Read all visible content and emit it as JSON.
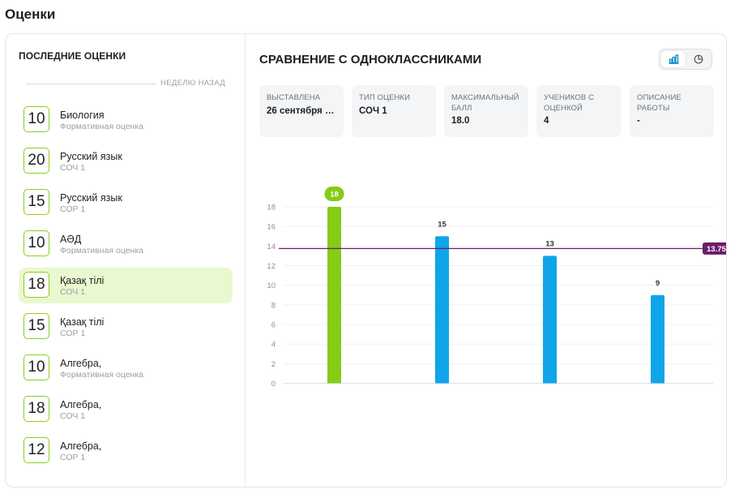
{
  "page": {
    "title": "Оценки"
  },
  "left": {
    "title": "ПОСЛЕДНИЕ ОЦЕНКИ",
    "divider_label": "НЕДЕЛЮ НАЗАД",
    "items": [
      {
        "grade": "10",
        "subject": "Биология",
        "type": "Формативная оценка",
        "active": false
      },
      {
        "grade": "20",
        "subject": "Русский язык",
        "type": "СОЧ 1",
        "active": false
      },
      {
        "grade": "15",
        "subject": "Русский язык",
        "type": "СОР 1",
        "active": false
      },
      {
        "grade": "10",
        "subject": "АӘД",
        "type": "Формативная оценка",
        "active": false
      },
      {
        "grade": "18",
        "subject": "Қазақ тілі",
        "type": "СОЧ 1",
        "active": true
      },
      {
        "grade": "15",
        "subject": "Қазақ тілі",
        "type": "СОР 1",
        "active": false
      },
      {
        "grade": "10",
        "subject": "Алгебра,",
        "type": "Формативная оценка",
        "active": false
      },
      {
        "grade": "18",
        "subject": "Алгебра,",
        "type": "СОЧ 1",
        "active": false
      },
      {
        "grade": "12",
        "subject": "Алгебра,",
        "type": "СОР 1",
        "active": false
      }
    ]
  },
  "right": {
    "title": "СРАВНЕНИЕ С ОДНОКЛАССНИКАМИ",
    "toggle": {
      "bar_icon": "bar-chart-icon",
      "pie_icon": "pie-chart-icon",
      "selected": "bar"
    },
    "info": [
      {
        "label": "ВЫСТАВЛЕНА",
        "value": "26 сентября 2…"
      },
      {
        "label": "ТИП ОЦЕНКИ",
        "value": "СОЧ 1"
      },
      {
        "label": "МАКСИМАЛЬНЫЙ БАЛЛ",
        "value": "18.0"
      },
      {
        "label": "УЧЕНИКОВ С ОЦЕНКОЙ",
        "value": "4"
      },
      {
        "label": "ОПИСАНИЕ РАБОТЫ",
        "value": "-"
      }
    ]
  },
  "colors": {
    "accent_green": "#84cc16",
    "bar_blue": "#0ea5e9",
    "average_line": "#6b1d6b",
    "grade_border": "#8ccf1c",
    "active_bg": "#eaf8cf"
  },
  "chart_data": {
    "type": "bar",
    "categories": [
      "",
      "",
      "",
      ""
    ],
    "values": [
      18,
      15,
      13,
      9
    ],
    "data_labels": [
      "18",
      "15",
      "13",
      "9"
    ],
    "highlight_index": 0,
    "ylim": [
      0,
      18
    ],
    "yticks": [
      0,
      2,
      4,
      6,
      8,
      10,
      12,
      14,
      16,
      18
    ],
    "average": {
      "value": 13.75,
      "label": "13.75"
    },
    "grid": true,
    "title": "",
    "xlabel": "",
    "ylabel": ""
  }
}
